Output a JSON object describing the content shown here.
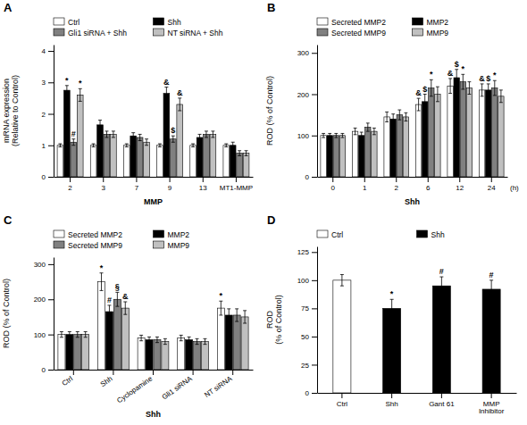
{
  "chart_data": [
    {
      "type": "bar",
      "title": "A",
      "xlabel": "MMP",
      "ylabel": "mRNA expression\n(Relative to Control)",
      "categories": [
        "2",
        "3",
        "7",
        "9",
        "13",
        "MT1-MMP"
      ],
      "series": [
        {
          "name": "Ctrl",
          "color": "white",
          "values": [
            1.0,
            1.0,
            1.0,
            1.0,
            1.0,
            1.0
          ],
          "errors": [
            0.05,
            0.05,
            0.05,
            0.05,
            0.05,
            0.05
          ]
        },
        {
          "name": "Shh",
          "color": "black",
          "values": [
            2.75,
            1.65,
            1.3,
            2.65,
            1.25,
            1.0
          ],
          "errors": [
            0.15,
            0.15,
            0.1,
            0.2,
            0.1,
            0.1
          ]
        },
        {
          "name": "Gli1 siRNA + Shh",
          "color": "#808080",
          "values": [
            1.1,
            1.35,
            1.25,
            1.2,
            1.35,
            0.75
          ],
          "errors": [
            0.1,
            0.1,
            0.1,
            0.1,
            0.1,
            0.08
          ]
        },
        {
          "name": "NT siRNA + Shh",
          "color": "#c0c0c0",
          "values": [
            2.6,
            1.35,
            1.1,
            2.3,
            1.35,
            0.75
          ],
          "errors": [
            0.2,
            0.1,
            0.1,
            0.2,
            0.1,
            0.08
          ]
        }
      ],
      "ylim": [
        0,
        4.2
      ],
      "yticks": [
        0,
        1,
        2,
        3,
        4
      ],
      "legend": "top",
      "annotations": [
        {
          "text": "*",
          "category": "2",
          "series": "Shh"
        },
        {
          "text": "*",
          "category": "2",
          "series": "NT siRNA + Shh"
        },
        {
          "text": "#",
          "category": "2",
          "series": "Gli1 siRNA + Shh"
        },
        {
          "text": "&",
          "category": "9",
          "series": "Shh"
        },
        {
          "text": "&",
          "category": "9",
          "series": "NT siRNA + Shh"
        },
        {
          "text": "$",
          "category": "9",
          "series": "Gli1 siRNA + Shh"
        }
      ]
    },
    {
      "type": "bar",
      "title": "B",
      "xlabel": "Shh",
      "ylabel": "ROD (% of Control)",
      "categories": [
        "0",
        "1",
        "2",
        "6",
        "12",
        "24"
      ],
      "series": [
        {
          "name": "Secreted MMP2",
          "color": "white",
          "values": [
            100,
            110,
            145,
            175,
            220,
            210
          ],
          "errors": [
            5,
            8,
            12,
            15,
            18,
            15
          ]
        },
        {
          "name": "MMP2",
          "color": "black",
          "values": [
            100,
            100,
            140,
            182,
            240,
            210
          ],
          "errors": [
            5,
            8,
            12,
            18,
            20,
            15
          ]
        },
        {
          "name": "Secreted MMP9",
          "color": "#808080",
          "values": [
            100,
            120,
            150,
            215,
            230,
            215
          ],
          "errors": [
            5,
            10,
            12,
            20,
            18,
            18
          ]
        },
        {
          "name": "MMP9",
          "color": "#c0c0c0",
          "values": [
            100,
            110,
            145,
            200,
            215,
            195
          ],
          "errors": [
            5,
            8,
            10,
            18,
            15,
            15
          ]
        }
      ],
      "ylim": [
        0,
        320
      ],
      "yticks": [
        0,
        100,
        200,
        300
      ],
      "legend": "top",
      "annotations": [
        {
          "text": "(h)"
        },
        {
          "text": "&",
          "category": "6",
          "series": "Secreted MMP2"
        },
        {
          "text": "$",
          "category": "6",
          "series": "MMP2"
        },
        {
          "text": "*",
          "category": "6",
          "series": "Secreted MMP9"
        },
        {
          "text": "&",
          "category": "12",
          "series": "Secreted MMP2"
        },
        {
          "text": "$",
          "category": "12",
          "series": "MMP2"
        },
        {
          "text": "*",
          "category": "12",
          "series": "Secreted MMP9"
        },
        {
          "text": "&",
          "category": "24",
          "series": "Secreted MMP2"
        },
        {
          "text": "$",
          "category": "24",
          "series": "MMP2"
        },
        {
          "text": "*",
          "category": "24",
          "series": "Secreted MMP9"
        }
      ]
    },
    {
      "type": "bar",
      "title": "C",
      "xlabel": "Shh",
      "ylabel": "ROD (% of Control)",
      "categories": [
        "Ctrl",
        "Shh",
        "Cyclopamine",
        "Gli1 siRNA",
        "NT siRNA"
      ],
      "series": [
        {
          "name": "Secreted MMP2",
          "color": "white",
          "values": [
            100,
            250,
            90,
            90,
            175
          ],
          "errors": [
            8,
            25,
            8,
            8,
            20
          ]
        },
        {
          "name": "MMP2",
          "color": "black",
          "values": [
            100,
            165,
            85,
            85,
            155
          ],
          "errors": [
            8,
            18,
            8,
            8,
            18
          ]
        },
        {
          "name": "Secreted MMP9",
          "color": "#808080",
          "values": [
            100,
            200,
            85,
            80,
            155
          ],
          "errors": [
            8,
            20,
            8,
            8,
            18
          ]
        },
        {
          "name": "MMP9",
          "color": "#c0c0c0",
          "values": [
            100,
            175,
            80,
            80,
            150
          ],
          "errors": [
            8,
            18,
            8,
            8,
            18
          ]
        }
      ],
      "ylim": [
        0,
        320
      ],
      "yticks": [
        0,
        100,
        200,
        300
      ],
      "legend": "top",
      "annotations": [
        {
          "text": "*",
          "category": "Shh",
          "series": "Secreted MMP2"
        },
        {
          "text": "#",
          "category": "Shh",
          "series": "MMP2"
        },
        {
          "text": "§",
          "category": "Shh",
          "series": "Secreted MMP9"
        },
        {
          "text": "&",
          "category": "Shh",
          "series": "MMP9"
        },
        {
          "text": "*",
          "category": "NT siRNA",
          "series": "Secreted MMP2"
        }
      ]
    },
    {
      "type": "bar",
      "title": "D",
      "ylabel": "ROD\n(% of Control)",
      "categories": [
        "Ctrl",
        "Shh",
        "Gant 61",
        "MMP\nInhibitor"
      ],
      "series": [
        {
          "name": "Ctrl",
          "color": "white",
          "values": [
            100,
            null,
            null,
            null
          ],
          "errors": [
            5,
            null,
            null,
            null
          ]
        },
        {
          "name": "Shh",
          "color": "black",
          "values": [
            null,
            75,
            95,
            92
          ],
          "errors": [
            null,
            8,
            8,
            8
          ]
        }
      ],
      "ylim": [
        0,
        130
      ],
      "yticks": [
        0,
        25,
        50,
        75,
        100,
        125
      ],
      "legend": "top",
      "annotations": [
        {
          "text": "*",
          "category": "Shh",
          "series": "Shh"
        },
        {
          "text": "#",
          "category": "Gant 61",
          "series": "Shh"
        },
        {
          "text": "#",
          "category": "MMP\nInhibitor",
          "series": "Shh"
        }
      ]
    }
  ]
}
